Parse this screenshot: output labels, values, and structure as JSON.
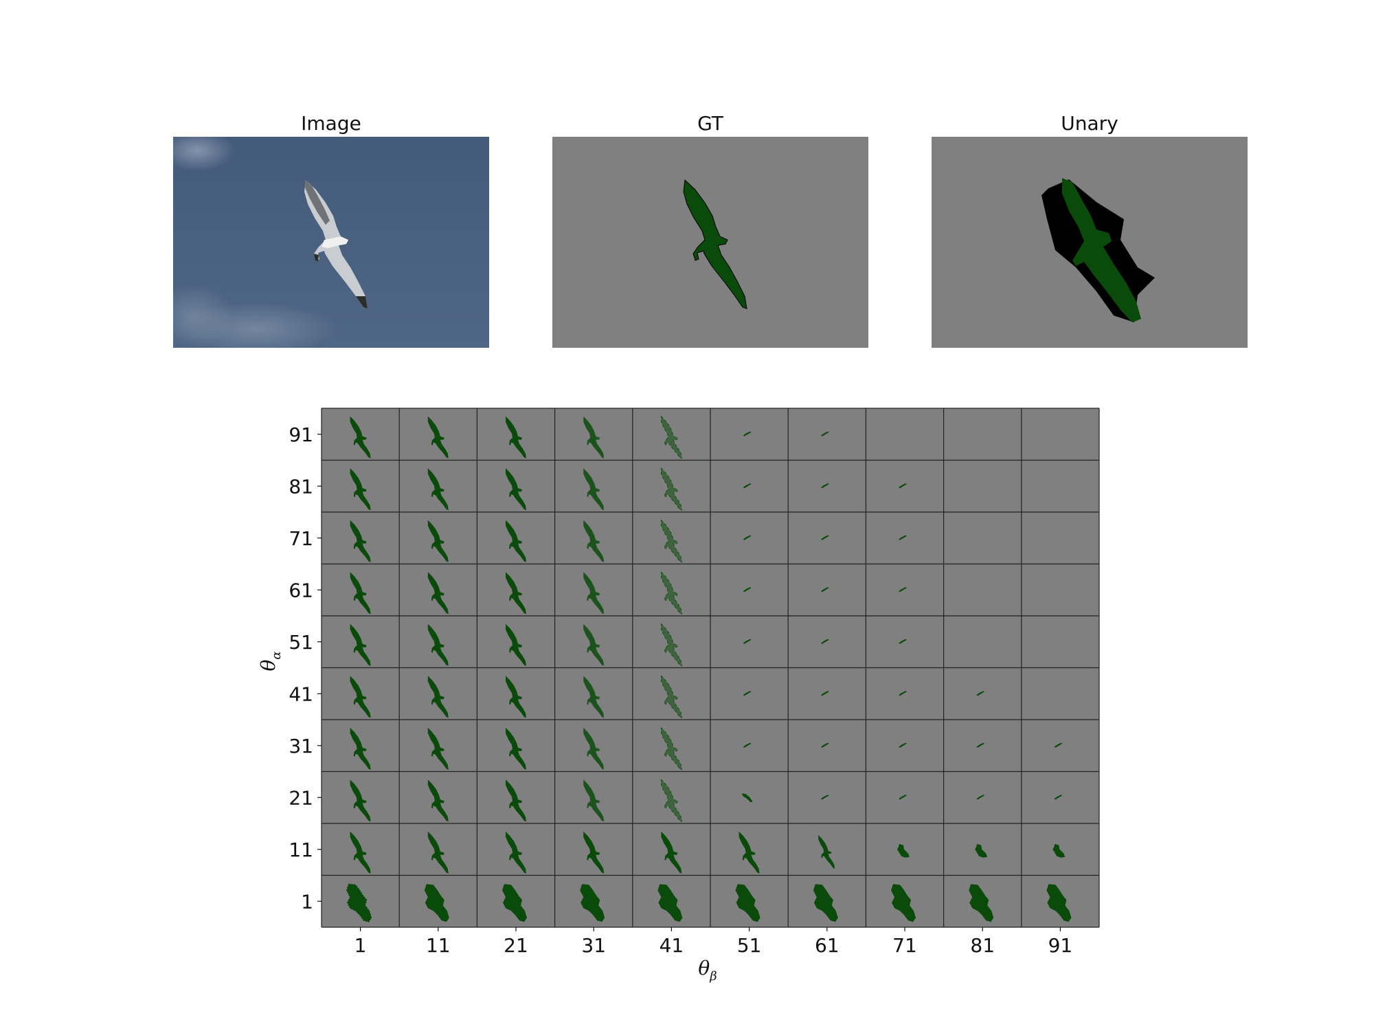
{
  "panels": {
    "image": {
      "title": "Image"
    },
    "gt": {
      "title": "GT"
    },
    "unary": {
      "title": "Unary"
    }
  },
  "colors": {
    "sky": "#4a6080",
    "background_label": "#808080",
    "foreground_label": "#0a4a0a",
    "unknown_label": "#000000",
    "grid_line": "#222222"
  },
  "grid": {
    "x_label_main": "θ",
    "x_label_sub": "β",
    "y_label_main": "θ",
    "y_label_sub": "α",
    "x_ticks": [
      "1",
      "11",
      "21",
      "31",
      "41",
      "51",
      "61",
      "71",
      "81",
      "91"
    ],
    "y_ticks_top_to_bottom": [
      "91",
      "81",
      "71",
      "61",
      "51",
      "41",
      "31",
      "21",
      "11",
      "1"
    ],
    "cell_kinds_top_to_bottom": [
      [
        "bird",
        "bird",
        "bird",
        "bird-sparse",
        "bird-broken",
        "sliver",
        "sliver",
        "empty",
        "empty",
        "empty"
      ],
      [
        "bird",
        "bird",
        "bird",
        "bird-sparse",
        "bird-broken",
        "sliver",
        "sliver",
        "sliver",
        "empty",
        "empty"
      ],
      [
        "bird",
        "bird",
        "bird",
        "bird-sparse",
        "bird-broken",
        "sliver",
        "sliver",
        "sliver",
        "empty",
        "empty"
      ],
      [
        "bird",
        "bird",
        "bird",
        "bird-sparse",
        "bird-broken",
        "sliver",
        "sliver",
        "sliver",
        "empty",
        "empty"
      ],
      [
        "bird",
        "bird",
        "bird",
        "bird-sparse",
        "bird-broken",
        "sliver",
        "sliver",
        "sliver",
        "empty",
        "empty"
      ],
      [
        "bird",
        "bird",
        "bird",
        "bird-sparse",
        "bird-broken",
        "sliver",
        "sliver",
        "sliver",
        "sliver",
        "empty"
      ],
      [
        "bird",
        "bird",
        "bird",
        "bird-sparse",
        "bird-broken",
        "sliver",
        "sliver",
        "sliver",
        "sliver",
        "sliver"
      ],
      [
        "bird",
        "bird",
        "bird",
        "bird-sparse",
        "bird-broken",
        "wing-fragment",
        "sliver",
        "sliver",
        "sliver",
        "sliver"
      ],
      [
        "bird",
        "bird",
        "bird",
        "bird",
        "bird",
        "bird",
        "bird-small",
        "blob-small",
        "blob-small",
        "blob-small"
      ],
      [
        "blob-rough",
        "blob",
        "blob",
        "blob",
        "blob",
        "blob",
        "blob",
        "blob",
        "blob",
        "blob"
      ]
    ]
  }
}
